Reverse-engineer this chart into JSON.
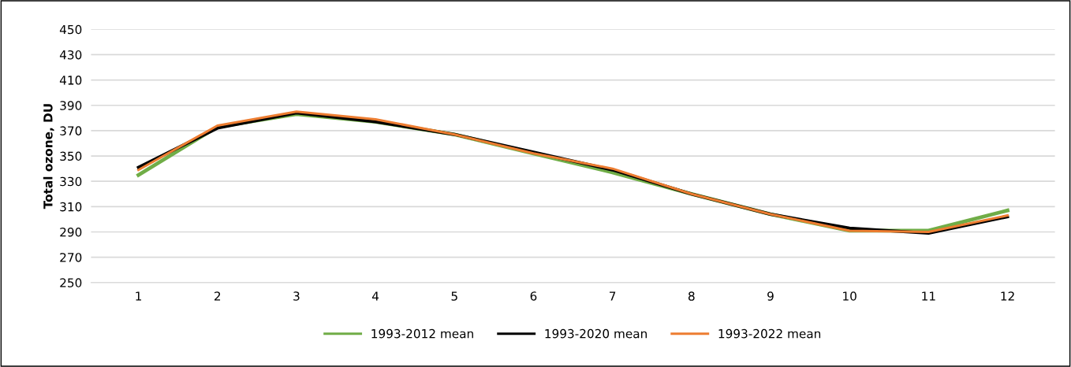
{
  "chart_data": {
    "type": "line",
    "ylabel": "Total ozone, DU",
    "categories": [
      "1",
      "2",
      "3",
      "4",
      "5",
      "6",
      "7",
      "8",
      "9",
      "10",
      "11",
      "12"
    ],
    "series": [
      {
        "name": "1993-2012 mean",
        "color": "#70ad47",
        "values": [
          335,
          373,
          383,
          377,
          367,
          352,
          337,
          320,
          304,
          291,
          291,
          307
        ]
      },
      {
        "name": "1993-2020 mean",
        "color": "#000000",
        "values": [
          341,
          372,
          384,
          377,
          367,
          353,
          339,
          320,
          304,
          293,
          289,
          302
        ]
      },
      {
        "name": "1993-2022 mean",
        "color": "#ed7d31",
        "values": [
          339,
          374,
          385,
          379,
          367,
          352,
          340,
          320,
          304,
          291,
          290,
          303
        ]
      }
    ],
    "ylim": [
      250,
      450
    ],
    "yticks": [
      250,
      270,
      290,
      310,
      330,
      350,
      370,
      390,
      410,
      430,
      450
    ],
    "grid": "y",
    "legend": "bottom",
    "marker": "none",
    "line_style": "solid"
  }
}
